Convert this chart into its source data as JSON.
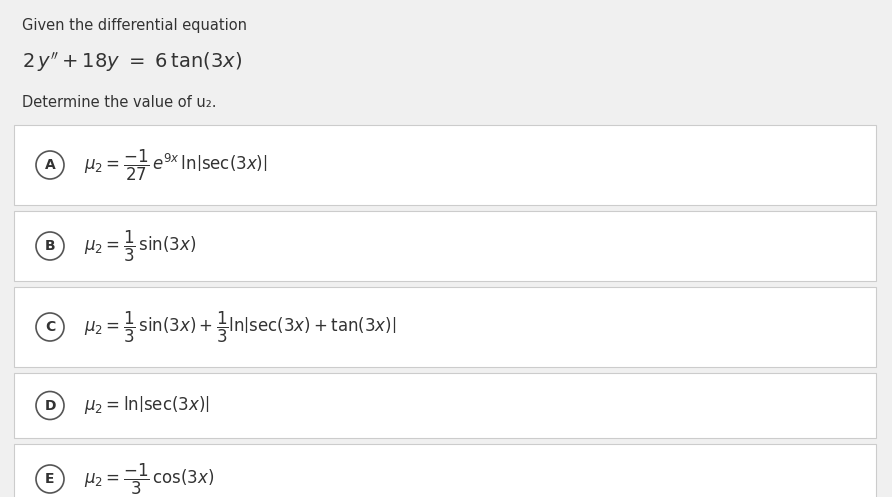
{
  "background_color": "#f0f0f0",
  "page_color": "#f0f0f0",
  "box_color": "#ffffff",
  "box_border_color": "#cccccc",
  "circle_color": "#ffffff",
  "circle_border": "#555555",
  "text_color": "#333333",
  "header_text": "Given the differential equation",
  "question": "Determine the value of u₂.",
  "labels": [
    "A",
    "B",
    "C",
    "D",
    "E"
  ],
  "font_size_header": 10.5,
  "font_size_equation": 12,
  "font_size_question": 10.5,
  "font_size_option": 12,
  "font_size_label": 10
}
